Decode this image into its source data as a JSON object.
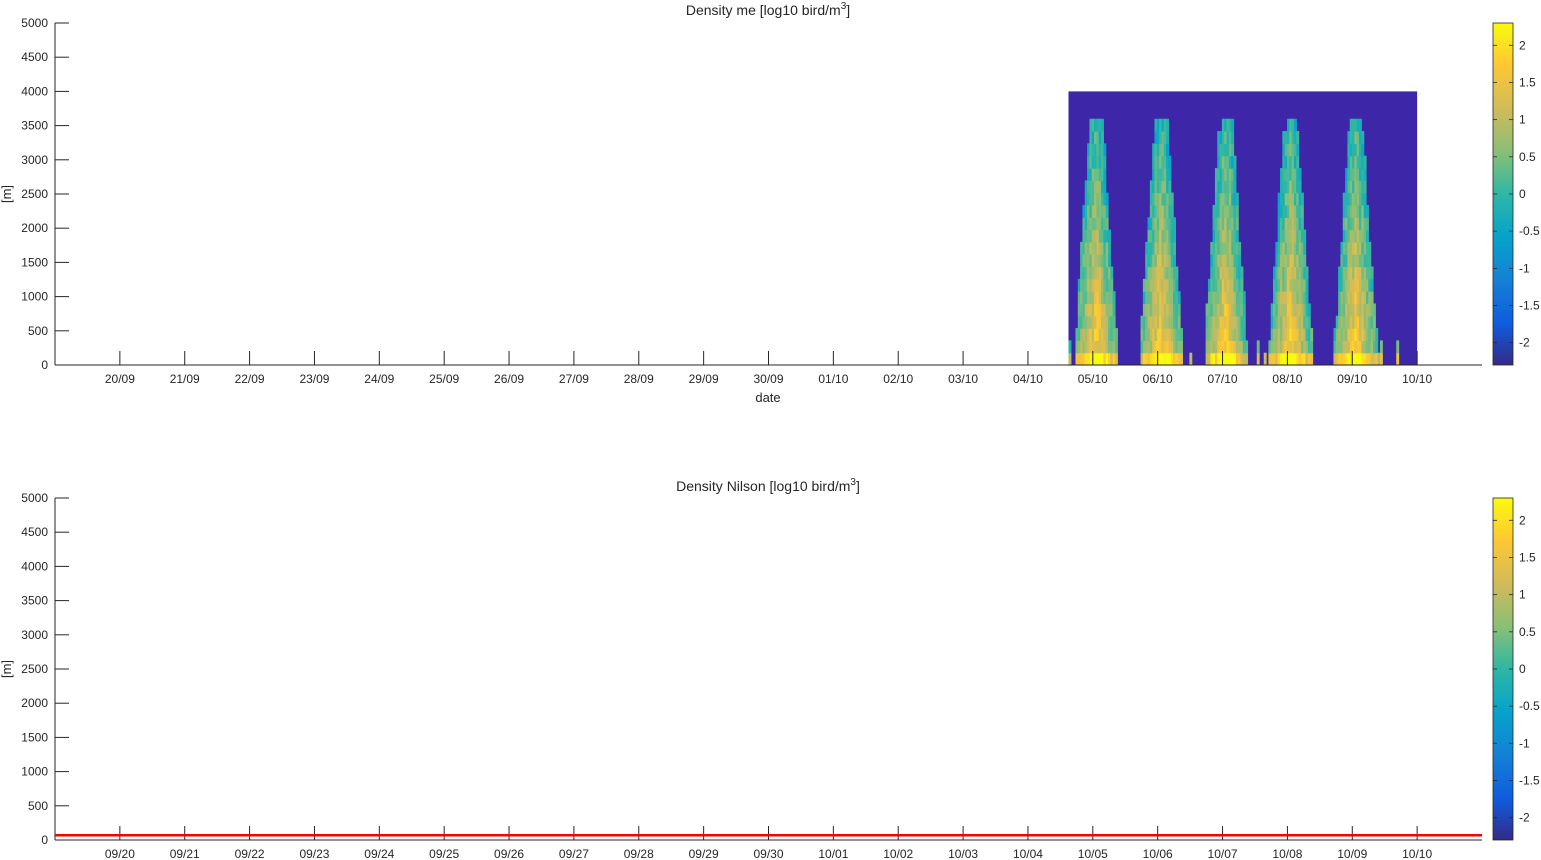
{
  "chart_data": [
    {
      "type": "heatmap",
      "title": "Density me [log10 bird/m",
      "title_sup": "3",
      "title_end": "]",
      "xlabel": "date",
      "ylabel": "[m]",
      "ylim": [
        0,
        5000
      ],
      "yticks": [
        0,
        500,
        1000,
        1500,
        2000,
        2500,
        3000,
        3500,
        4000,
        4500,
        5000
      ],
      "xlim_days": [
        "2020-09-19",
        "2020-10-11"
      ],
      "xtick_labels": [
        "20/09",
        "21/09",
        "22/09",
        "23/09",
        "24/09",
        "25/09",
        "26/09",
        "27/09",
        "28/09",
        "29/09",
        "30/09",
        "01/10",
        "02/10",
        "03/10",
        "04/10",
        "05/10",
        "06/10",
        "07/10",
        "08/10",
        "09/10",
        "10/10"
      ],
      "data_extent": {
        "x": [
          "2020-10-04T15:00",
          "2020-10-10T00:00"
        ],
        "y": [
          0,
          4000
        ]
      },
      "nocturnal_peaks": [
        "2020-10-05",
        "2020-10-06",
        "2020-10-07",
        "2020-10-08",
        "2020-10-09"
      ],
      "colorbar": {
        "clim": [
          -2.3,
          2.3
        ],
        "ticks": [
          -2,
          -1.5,
          -1,
          -0.5,
          0,
          0.5,
          1,
          1.5,
          2
        ],
        "tick_labels": [
          "-2",
          "-1.5",
          "-1",
          "-0.5",
          "0",
          "0.5",
          "1",
          "1.5",
          "2"
        ],
        "colormap": "parula"
      }
    },
    {
      "type": "heatmap",
      "title": "Density Nilson [log10 bird/m",
      "title_sup": "3",
      "title_end": "]",
      "xlabel": "",
      "ylabel": "[m]",
      "ylim": [
        0,
        5000
      ],
      "yticks": [
        0,
        500,
        1000,
        1500,
        2000,
        2500,
        3000,
        3500,
        4000,
        4500,
        5000
      ],
      "xlim_days": [
        "2020-09-19",
        "2020-10-11"
      ],
      "xtick_labels": [
        "09/20",
        "09/21",
        "09/22",
        "09/23",
        "09/24",
        "09/25",
        "09/26",
        "09/27",
        "09/28",
        "09/29",
        "09/30",
        "10/01",
        "10/02",
        "10/03",
        "10/04",
        "10/05",
        "10/06",
        "10/07",
        "10/08",
        "10/09",
        "10/10"
      ],
      "reference_line": {
        "y": 70,
        "color": "#ff0000"
      },
      "colorbar": {
        "clim": [
          -2.3,
          2.3
        ],
        "ticks": [
          -2,
          -1.5,
          -1,
          -0.5,
          0,
          0.5,
          1,
          1.5,
          2
        ],
        "tick_labels": [
          "-2",
          "-1.5",
          "-1",
          "-0.5",
          "0",
          "0.5",
          "1",
          "1.5",
          "2"
        ],
        "colormap": "parula"
      }
    }
  ]
}
